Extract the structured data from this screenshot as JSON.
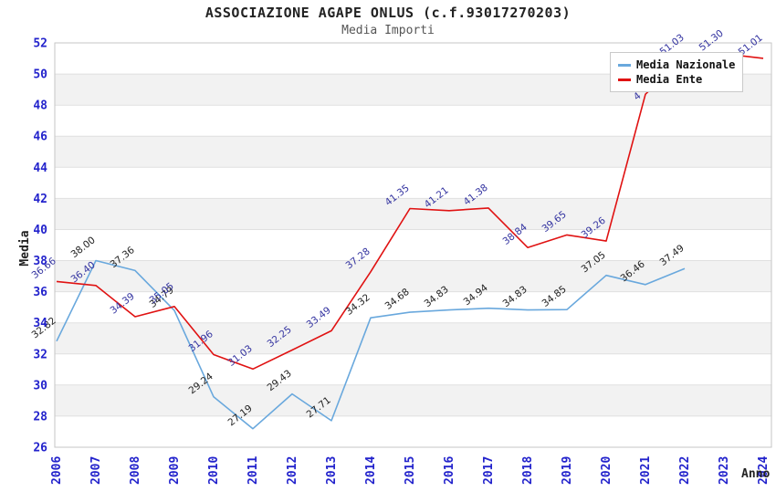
{
  "header": {
    "title": "ASSOCIAZIONE AGAPE ONLUS (c.f.93017270203)",
    "subtitle": "Media Importi"
  },
  "axes": {
    "y_title": "Media",
    "x_title": "Anno",
    "y_ticks": [
      26,
      28,
      30,
      32,
      34,
      36,
      38,
      40,
      42,
      44,
      46,
      48,
      50,
      52
    ]
  },
  "colors": {
    "tick_label": "#2323cc",
    "band": "#f2f2f2",
    "gridline": "#e0e0e0",
    "plot_border": "#c6c6c6",
    "nazionale_line": "#69a8dd",
    "ente_line": "#e01212",
    "nazionale_label": "#222222",
    "ente_label": "#3333a0"
  },
  "chart_data": {
    "type": "line",
    "title": "ASSOCIAZIONE AGAPE ONLUS (c.f.93017270203)",
    "subtitle": "Media Importi",
    "xlabel": "Anno",
    "ylabel": "Media",
    "ylim": [
      26,
      52
    ],
    "grid": "alternating-horizontal-bands",
    "legend_position": "top-right",
    "x": [
      "2006",
      "2007",
      "2008",
      "2009",
      "2010",
      "2011",
      "2012",
      "2013",
      "2014",
      "2015",
      "2016",
      "2017",
      "2018",
      "2019",
      "2020",
      "2021",
      "2022",
      "2023",
      "2024"
    ],
    "series": [
      {
        "name": "Media Nazionale",
        "color": "#69a8dd",
        "label_color": "#222222",
        "values": [
          32.82,
          38.0,
          37.36,
          34.79,
          29.24,
          27.19,
          29.43,
          27.71,
          34.32,
          34.68,
          34.83,
          34.94,
          34.83,
          34.85,
          37.05,
          36.46,
          37.49,
          null,
          null
        ],
        "labels": [
          "32.82",
          "38.00",
          "37.36",
          "34.79",
          "29.24",
          "27.19",
          "29.43",
          "27.71",
          "34.32",
          "34.68",
          "34.83",
          "34.94",
          "34.83",
          "34.85",
          "37.05",
          "36.46",
          "37.49",
          null,
          null
        ]
      },
      {
        "name": "Media Ente",
        "color": "#e01212",
        "label_color": "#3333a0",
        "values": [
          36.66,
          36.4,
          34.39,
          35.05,
          31.96,
          31.03,
          32.25,
          33.49,
          37.28,
          41.35,
          41.21,
          41.38,
          38.84,
          39.65,
          39.26,
          48.7,
          51.03,
          51.3,
          51.01
        ],
        "labels": [
          "36.66",
          "36.40",
          "34.39",
          "35.05",
          "31.96",
          "31.03",
          "32.25",
          "33.49",
          "37.28",
          "41.35",
          "41.21",
          "41.38",
          "38.84",
          "39.65",
          "39.26",
          "4",
          "51.03",
          "51.30",
          "51.01"
        ],
        "note_2021_label": "partially hidden behind legend, only '4' visible"
      }
    ]
  }
}
